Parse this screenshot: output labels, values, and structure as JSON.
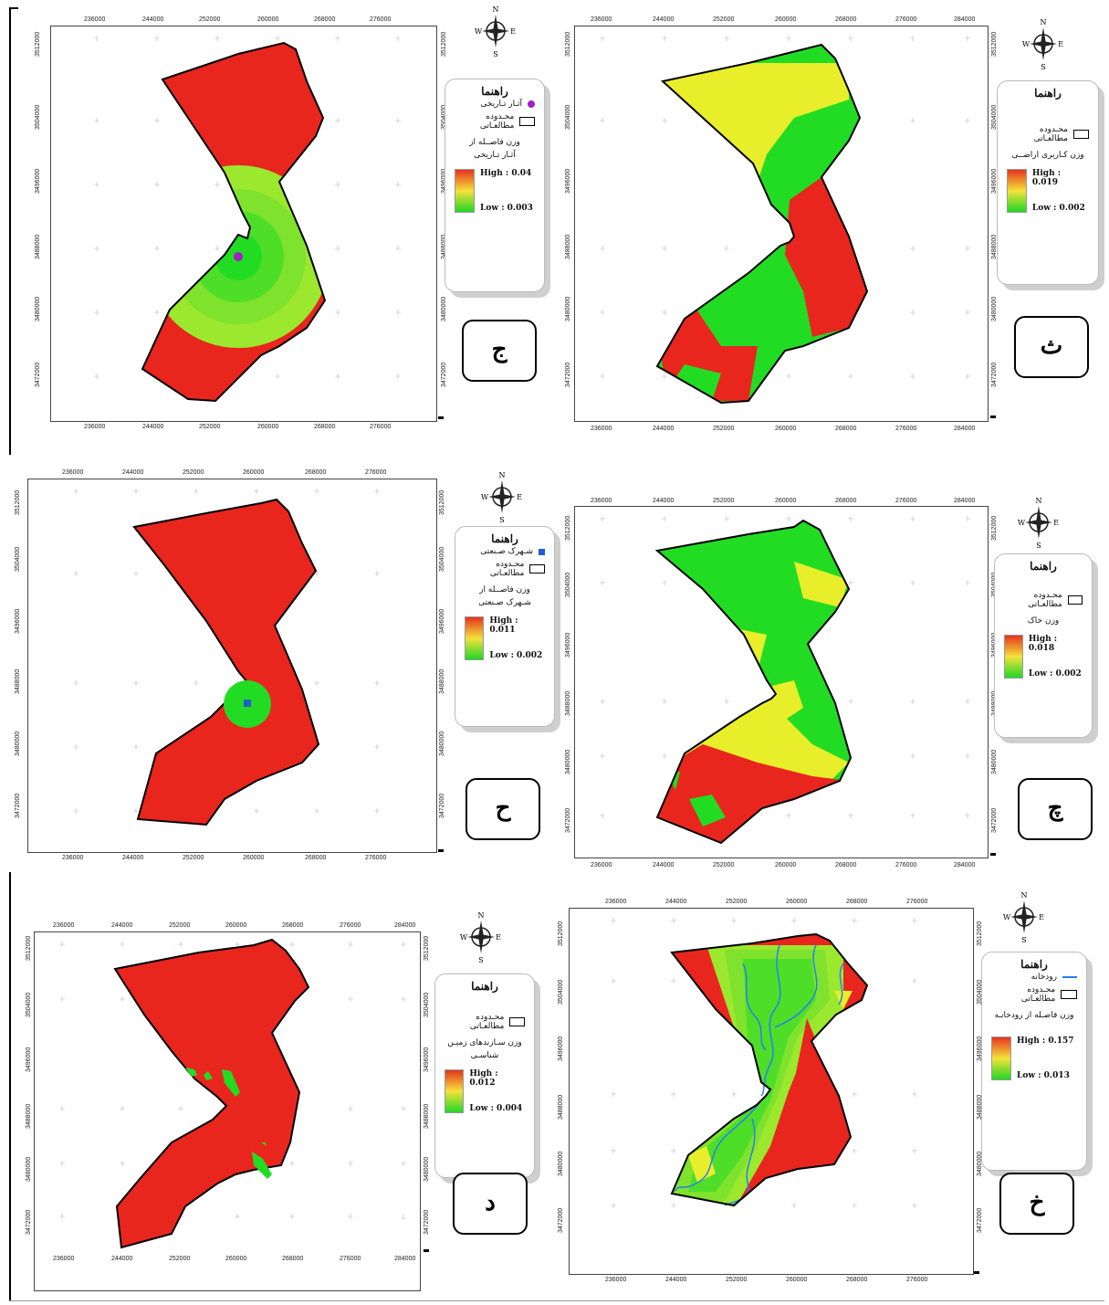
{
  "ticks_x": [
    "236000",
    "244000",
    "252000",
    "260000",
    "268000",
    "276000"
  ],
  "ticks_x_wide": [
    "236000",
    "244000",
    "252000",
    "260000",
    "268000",
    "276000",
    "284000"
  ],
  "ticks_y": [
    "3512000",
    "3504000",
    "3496000",
    "3488000",
    "3480000",
    "3472000"
  ],
  "compass": {
    "n": "N",
    "s": "S",
    "e": "E",
    "w": "W"
  },
  "panels": {
    "jim": {
      "letter": "ج",
      "legend_title": "راهنما",
      "point_label": "آثـار تـاریخی",
      "boundary_label": "محـدوده مطالعـاتی",
      "weight_line1": "وزن فاصــله از",
      "weight_line2": "آثـار تـاریخی",
      "high": "High : 0.04",
      "low": "Low : 0.003",
      "point_color": "#a020c0"
    },
    "se": {
      "letter": "ث",
      "legend_title": "راهنما",
      "boundary_label": "محـدوده مطالعـاتی",
      "weight_line1": "وزن کـاربری اراضــی",
      "high": "High : 0.019",
      "low": "Low : 0.002"
    },
    "he": {
      "letter": "ح",
      "legend_title": "راهنما",
      "point_label": "شـهرک صـنعتی",
      "boundary_label": "محـدوده مطالعـاتی",
      "weight_line1": "وزن فاصــله از",
      "weight_line2": "شـهرک صـنعتی",
      "high": "High : 0.011",
      "low": "Low : 0.002",
      "point_color": "#1f5fd0"
    },
    "che": {
      "letter": "چ",
      "legend_title": "راهنما",
      "boundary_label": "محـدوده مطالعـاتی",
      "weight_line1": "وزن خاک",
      "high": "High : 0.018",
      "low": "Low : 0.002"
    },
    "dal": {
      "letter": "د",
      "legend_title": "راهنما",
      "boundary_label": "محـدوده مطالعـاتی",
      "weight_line1": "وزن سـازندهای زمیـن شناسـی",
      "high": "High : 0.012",
      "low": "Low : 0.004"
    },
    "khe": {
      "letter": "خ",
      "legend_title": "راهنما",
      "river_label": "رودخانه",
      "boundary_label": "محـدوده مطالعـاتی",
      "weight_line1": "وزن فاصـله از رودخانـه",
      "high": "High : 0.157",
      "low": "Low : 0.013"
    }
  },
  "colors": {
    "high": "#e8261e",
    "mid": "#e8ef2a",
    "lowmid": "#9be82e",
    "low": "#22dc24",
    "river": "#2a7ef0"
  }
}
